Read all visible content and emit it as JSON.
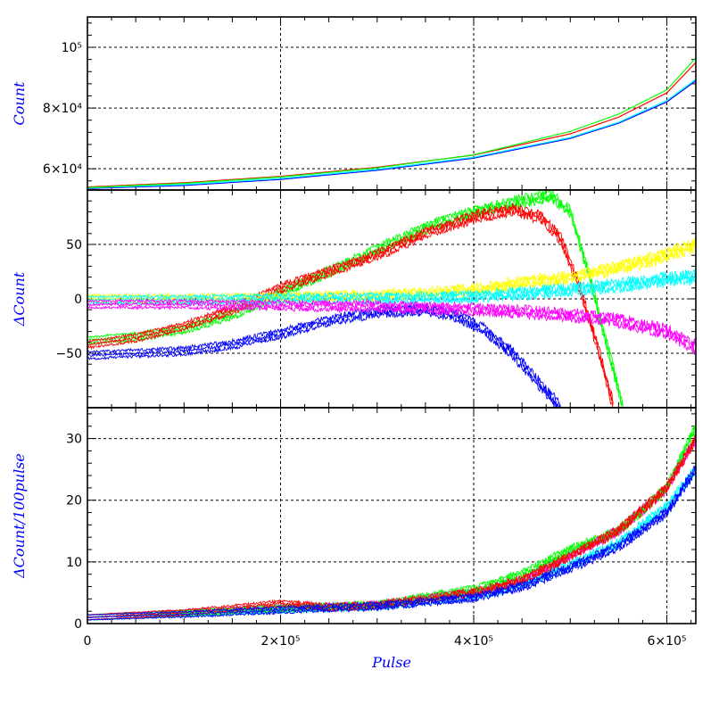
{
  "chart_data": [
    {
      "type": "line",
      "panel": "top",
      "ylabel": "Count",
      "xlim": [
        0,
        630000
      ],
      "ylim": [
        53000,
        110000
      ],
      "yticks": [
        60000,
        80000,
        100000
      ],
      "ytick_labels": [
        "6×10⁴",
        "8×10⁴",
        "10⁵"
      ],
      "xticks": [
        0,
        200000,
        400000,
        600000
      ],
      "grid": true,
      "series": [
        {
          "color": "#0000ff",
          "x": [
            0,
            100000,
            200000,
            300000,
            400000,
            500000,
            550000,
            600000,
            630000
          ],
          "y": [
            53500,
            54500,
            56500,
            59500,
            63500,
            70000,
            75000,
            82000,
            89000
          ]
        },
        {
          "color": "#00ffff",
          "x": [
            0,
            100000,
            200000,
            300000,
            400000,
            500000,
            550000,
            600000,
            630000
          ],
          "y": [
            53700,
            54800,
            56800,
            59800,
            63800,
            70300,
            75300,
            82500,
            89500
          ]
        },
        {
          "color": "#ff0000",
          "x": [
            0,
            100000,
            200000,
            300000,
            400000,
            500000,
            550000,
            600000,
            630000
          ],
          "y": [
            54000,
            55400,
            57500,
            60500,
            64500,
            71500,
            77000,
            85000,
            95000
          ]
        },
        {
          "color": "#00ff00",
          "x": [
            0,
            100000,
            200000,
            300000,
            400000,
            500000,
            550000,
            600000,
            630000
          ],
          "y": [
            53800,
            55200,
            57300,
            60300,
            64600,
            72300,
            78000,
            86000,
            96500
          ]
        }
      ]
    },
    {
      "type": "line",
      "panel": "middle",
      "ylabel": "ΔCount",
      "xlim": [
        0,
        630000
      ],
      "ylim": [
        -100,
        100
      ],
      "yticks": [
        -50,
        0,
        50
      ],
      "ytick_labels": [
        "−50",
        "0",
        "50"
      ],
      "xticks": [
        0,
        200000,
        400000,
        600000
      ],
      "grid": true,
      "series": [
        {
          "color": "#00ff00",
          "x": [
            0,
            50000,
            100000,
            150000,
            200000,
            250000,
            300000,
            350000,
            400000,
            450000,
            480000,
            500000,
            520000,
            540000,
            555000
          ],
          "y": [
            -38,
            -35,
            -28,
            -15,
            5,
            25,
            45,
            65,
            80,
            90,
            95,
            80,
            20,
            -50,
            -100
          ]
        },
        {
          "color": "#ff0000",
          "x": [
            0,
            50000,
            100000,
            150000,
            200000,
            250000,
            300000,
            350000,
            400000,
            440000,
            470000,
            490000,
            510000,
            530000,
            545000
          ],
          "y": [
            -42,
            -36,
            -25,
            -10,
            10,
            25,
            40,
            60,
            75,
            82,
            75,
            55,
            10,
            -50,
            -100
          ]
        },
        {
          "color": "#0000ff",
          "x": [
            0,
            50000,
            100000,
            150000,
            200000,
            250000,
            300000,
            350000,
            380000,
            410000,
            440000,
            460000,
            480000,
            490000
          ],
          "y": [
            -52,
            -50,
            -48,
            -42,
            -32,
            -20,
            -12,
            -10,
            -15,
            -28,
            -50,
            -70,
            -90,
            -100
          ]
        },
        {
          "color": "#ffff00",
          "x": [
            0,
            100000,
            200000,
            300000,
            400000,
            450000,
            500000,
            550000,
            600000,
            630000
          ],
          "y": [
            0,
            0,
            1,
            3,
            8,
            15,
            20,
            28,
            40,
            50
          ]
        },
        {
          "color": "#00ffff",
          "x": [
            0,
            100000,
            200000,
            300000,
            400000,
            450000,
            500000,
            550000,
            600000,
            630000
          ],
          "y": [
            -1,
            -1,
            0,
            0,
            2,
            5,
            8,
            12,
            18,
            20
          ]
        },
        {
          "color": "#ff00ff",
          "x": [
            0,
            100000,
            200000,
            300000,
            400000,
            450000,
            500000,
            550000,
            600000,
            630000
          ],
          "y": [
            -5,
            -5,
            -6,
            -7,
            -10,
            -12,
            -15,
            -20,
            -30,
            -45
          ]
        }
      ]
    },
    {
      "type": "line",
      "panel": "bottom",
      "ylabel": "ΔCount/100pulse",
      "xlabel": "Pulse",
      "xlim": [
        0,
        630000
      ],
      "ylim": [
        0,
        35
      ],
      "yticks": [
        0,
        10,
        20,
        30
      ],
      "ytick_labels": [
        "0",
        "10",
        "20",
        "30"
      ],
      "xticks": [
        0,
        200000,
        400000,
        600000
      ],
      "xtick_labels": [
        "0",
        "2×10⁵",
        "4×10⁵",
        "6×10⁵"
      ],
      "grid": true,
      "series": [
        {
          "color": "#ff00ff",
          "x": [
            0,
            100000,
            200000,
            300000,
            400000,
            450000,
            500000,
            550000,
            600000,
            630000
          ],
          "y": [
            1,
            1.8,
            2.5,
            3,
            5,
            7,
            11,
            15,
            22,
            30
          ]
        },
        {
          "color": "#00ffff",
          "x": [
            0,
            100000,
            200000,
            300000,
            400000,
            450000,
            500000,
            550000,
            600000,
            630000
          ],
          "y": [
            1,
            1.6,
            2.3,
            2.8,
            4.5,
            6.3,
            9.5,
            13,
            19,
            25
          ]
        },
        {
          "color": "#00ff00",
          "x": [
            0,
            100000,
            200000,
            300000,
            400000,
            450000,
            500000,
            550000,
            600000,
            630000
          ],
          "y": [
            1,
            1.7,
            2.5,
            3,
            5.5,
            8,
            12,
            15,
            22,
            32
          ]
        },
        {
          "color": "#ff0000",
          "x": [
            0,
            100000,
            150000,
            200000,
            250000,
            300000,
            400000,
            450000,
            500000,
            550000,
            600000,
            630000
          ],
          "y": [
            1,
            1.8,
            2.5,
            3.3,
            2.6,
            3,
            5,
            7,
            11,
            15,
            22,
            30
          ]
        },
        {
          "color": "#0000ff",
          "x": [
            0,
            100000,
            200000,
            300000,
            400000,
            450000,
            500000,
            550000,
            600000,
            630000
          ],
          "y": [
            1,
            1.5,
            2.2,
            2.8,
            4.2,
            6,
            9,
            12.5,
            18,
            25
          ]
        }
      ]
    }
  ]
}
